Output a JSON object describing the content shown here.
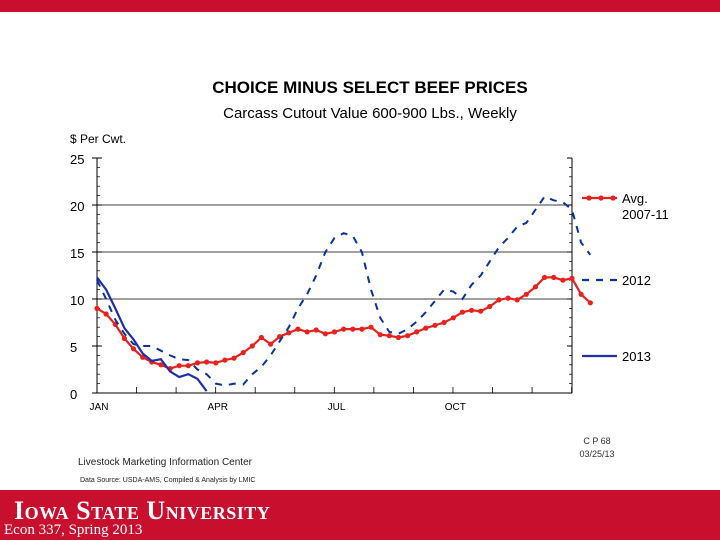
{
  "chart_data": {
    "type": "line",
    "title": "CHOICE MINUS SELECT BEEF PRICES",
    "subtitle": "Carcass Cutout Value 600-900 Lbs., Weekly",
    "ylabel": "$ Per Cwt.",
    "ylim": [
      0,
      25
    ],
    "yticks": [
      0,
      5,
      10,
      15,
      20,
      25
    ],
    "xlim": [
      1,
      53
    ],
    "x_tick_labels": [
      {
        "label": "JAN",
        "week": 1
      },
      {
        "label": "APR",
        "week": 14
      },
      {
        "label": "JUL",
        "week": 27
      },
      {
        "label": "OCT",
        "week": 40
      }
    ],
    "gridlines_at": [
      10,
      15,
      20
    ],
    "series": [
      {
        "name": "Avg. 2007-11",
        "legend_lines": [
          "Avg.",
          "2007-11"
        ],
        "style": "solid-markers",
        "color": "#e8211d",
        "start_week": 1,
        "values": [
          9.0,
          8.4,
          7.3,
          5.8,
          4.7,
          3.8,
          3.3,
          3.0,
          2.6,
          2.9,
          2.9,
          3.2,
          3.3,
          3.2,
          3.5,
          3.7,
          4.3,
          5.0,
          5.9,
          5.2,
          6.0,
          6.4,
          6.8,
          6.5,
          6.7,
          6.3,
          6.5,
          6.8,
          6.8,
          6.8,
          7.0,
          6.2,
          6.1,
          5.9,
          6.1,
          6.5,
          6.9,
          7.2,
          7.5,
          8.0,
          8.6,
          8.8,
          8.7,
          9.2,
          9.9,
          10.1,
          9.9,
          10.5,
          11.3,
          12.3,
          12.3,
          12.0,
          12.2,
          10.5,
          9.6
        ]
      },
      {
        "name": "2012",
        "legend_lines": [
          "2012"
        ],
        "style": "dashed",
        "color": "#0a3399",
        "start_week": 1,
        "values": [
          12.0,
          10.0,
          7.8,
          6.3,
          5.2,
          5.0,
          5.0,
          4.5,
          4.0,
          3.6,
          3.5,
          2.5,
          2.0,
          1.0,
          0.8,
          1.0,
          0.9,
          2.0,
          2.8,
          4.0,
          5.5,
          7.0,
          9.0,
          10.5,
          12.5,
          15.0,
          16.5,
          17.0,
          16.7,
          15.0,
          11.0,
          8.0,
          6.5,
          6.3,
          6.8,
          7.6,
          8.6,
          9.8,
          11.0,
          10.8,
          10.0,
          11.5,
          12.5,
          14.0,
          15.5,
          16.5,
          17.7,
          18.1,
          19.5,
          20.9,
          20.5,
          20.3,
          19.5,
          16.0,
          14.7
        ]
      },
      {
        "name": "2013",
        "legend_lines": [
          "2013"
        ],
        "style": "solid",
        "color": "#1f2fa8",
        "start_week": 1,
        "values": [
          12.3,
          11.0,
          9.0,
          6.9,
          5.7,
          4.2,
          3.4,
          3.6,
          2.3,
          1.7,
          2.0,
          1.5,
          0.2
        ]
      }
    ],
    "annotations": {
      "code": "C P 68",
      "date": "03/25/13",
      "source_org": "Livestock Marketing Information Center",
      "data_source": "Data Source:  USDA-AMS, Compiled & Analysis by LMIC"
    }
  },
  "footer": {
    "university": "Iowa State University",
    "course": "Econ 337, Spring 2013"
  }
}
